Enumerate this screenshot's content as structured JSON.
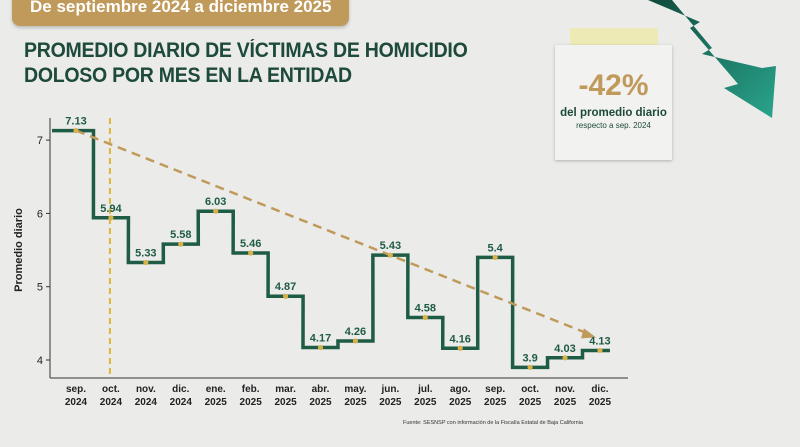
{
  "header": {
    "banner": "De septiembre 2024 a diciembre 2025",
    "title_line1": "PROMEDIO DIARIO DE VÍCTIMAS DE HOMICIDIO",
    "title_line2": "DOLOSO POR MES EN LA ENTIDAD"
  },
  "callout": {
    "value": "-42%",
    "line1": "del promedio diario",
    "line2": "respecto a sep. 2024"
  },
  "source": "Fuente: SESNSP con información de la Fiscalía Estatal de Baja California",
  "colors": {
    "line": "#1e5c45",
    "marker": "#d8b14a",
    "trend": "#c09a5b",
    "ref": "#e2b53a"
  },
  "chart_data": {
    "type": "line",
    "step": true,
    "ylabel": "Promedio diario",
    "ylim": [
      3.9,
      7.3
    ],
    "yticks": [
      4,
      5,
      6,
      7
    ],
    "categories": [
      [
        "sep.",
        "2024"
      ],
      [
        "oct.",
        "2024"
      ],
      [
        "nov.",
        "2024"
      ],
      [
        "dic.",
        "2024"
      ],
      [
        "ene.",
        "2025"
      ],
      [
        "feb.",
        "2025"
      ],
      [
        "mar.",
        "2025"
      ],
      [
        "abr.",
        "2025"
      ],
      [
        "may.",
        "2025"
      ],
      [
        "jun.",
        "2025"
      ],
      [
        "jul.",
        "2025"
      ],
      [
        "ago.",
        "2025"
      ],
      [
        "sep.",
        "2025"
      ],
      [
        "oct.",
        "2025"
      ],
      [
        "nov.",
        "2025"
      ],
      [
        "dic.",
        "2025"
      ]
    ],
    "values": [
      7.13,
      5.94,
      5.33,
      5.58,
      6.03,
      5.46,
      4.87,
      4.17,
      4.26,
      5.43,
      4.58,
      4.16,
      5.4,
      3.9,
      4.03,
      4.13
    ],
    "labels": [
      "7.13",
      "5.94",
      "5.33",
      "5.58",
      "6.03",
      "5.46",
      "4.87",
      "4.17",
      "4.26",
      "5.43",
      "4.58",
      "4.16",
      "5.4",
      "3.9",
      "4.03",
      "4.13"
    ],
    "trend": {
      "from": [
        "sep. 2024",
        7.13
      ],
      "to": [
        "dic. 2025",
        4.35
      ]
    },
    "reference_line": "oct. 2024"
  }
}
